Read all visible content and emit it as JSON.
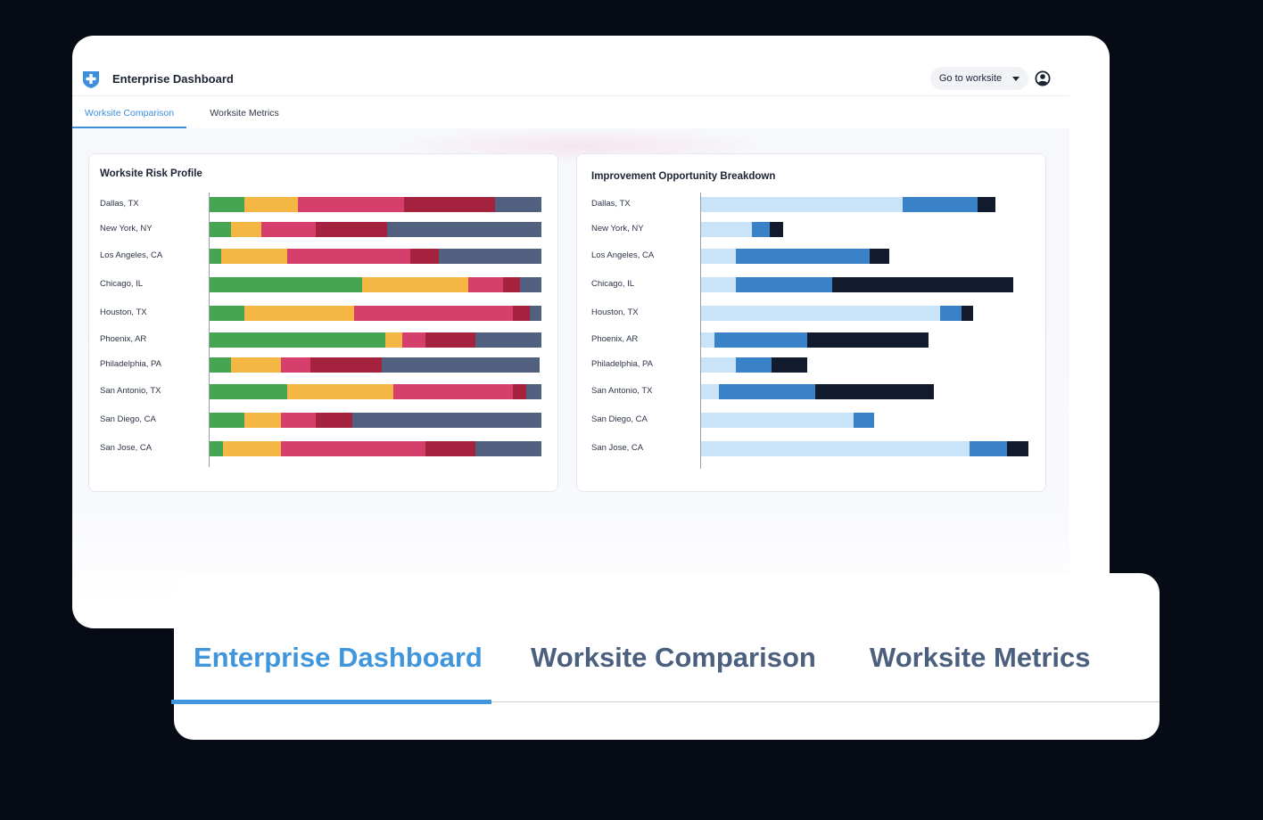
{
  "header": {
    "title": "Enterprise Dashboard",
    "worksite_button": "Go to worksite",
    "user_icon": "user-circle-icon",
    "logo_icon": "shield-plus-icon"
  },
  "tabs": [
    {
      "label": "Worksite Comparison",
      "active": true
    },
    {
      "label": "Worksite Metrics",
      "active": false
    }
  ],
  "overlay_tabs": [
    {
      "label": "Enterprise Dashboard",
      "active": true
    },
    {
      "label": "Worksite Comparison",
      "active": false
    },
    {
      "label": "Worksite Metrics",
      "active": false
    }
  ],
  "colors": {
    "accent": "#3b8fdc",
    "risk": [
      "#46a551",
      "#f4b744",
      "#d63e6c",
      "#a5223f",
      "#51607f"
    ],
    "improvement": [
      "#c9e3f8",
      "#3a82c8",
      "#121a2e"
    ]
  },
  "chart_data": [
    {
      "type": "bar",
      "orientation": "horizontal",
      "stacked": true,
      "title": "Worksite Risk Profile",
      "categories": [
        "Dallas, TX",
        "New York, NY",
        "Los Angeles, CA",
        "Chicago, IL",
        "Houston, TX",
        "Phoenix, AR",
        "Philadelphia, PA",
        "San Antonio, TX",
        "San Diego, CA",
        "San Jose, CA"
      ],
      "series": [
        {
          "values": [
            10.5,
            6.5,
            3.5,
            46,
            10.5,
            53,
            6.5,
            23.5,
            10.5,
            4
          ]
        },
        {
          "values": [
            16,
            9,
            20,
            32,
            33,
            5,
            15,
            32,
            11,
            17.5
          ]
        },
        {
          "values": [
            32,
            16.5,
            37,
            10.5,
            48,
            7,
            9,
            36,
            10.5,
            43.5
          ]
        },
        {
          "values": [
            27.5,
            21.5,
            8.5,
            5,
            5,
            15,
            21.5,
            4,
            11,
            15
          ]
        },
        {
          "values": [
            14,
            46.5,
            31,
            6.5,
            3.5,
            20,
            47.5,
            4.5,
            57,
            20
          ]
        }
      ],
      "xlim": [
        0,
        100
      ],
      "grid": false,
      "legend": "none"
    },
    {
      "type": "bar",
      "orientation": "horizontal",
      "stacked": true,
      "title": "Improvement Opportunity Breakdown",
      "categories": [
        "Dallas, TX",
        "New York, NY",
        "Los Angeles, CA",
        "Chicago, IL",
        "Houston, TX",
        "Phoenix, AR",
        "Philadelphia, PA",
        "San Antonio, TX",
        "San Diego, CA",
        "San Jose, CA"
      ],
      "series": [
        {
          "values": [
            61.5,
            15.5,
            10.5,
            10.5,
            73,
            4,
            10.5,
            5.5,
            46.5,
            82
          ]
        },
        {
          "values": [
            23,
            5.5,
            41,
            29.5,
            6.5,
            28.5,
            11,
            29.5,
            6.5,
            11.5
          ]
        },
        {
          "values": [
            5.5,
            4,
            6,
            55.5,
            3.5,
            37,
            11,
            36,
            0,
            6.5
          ]
        }
      ],
      "xlim": [
        0,
        100
      ],
      "grid": false,
      "legend": "none"
    }
  ]
}
